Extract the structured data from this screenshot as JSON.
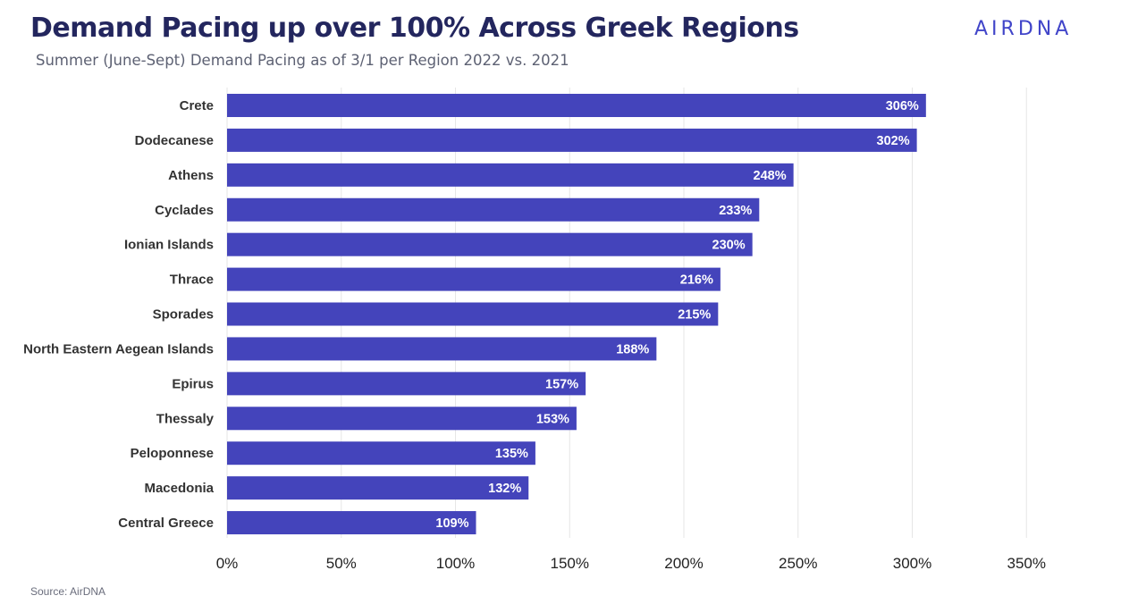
{
  "header": {
    "title": "Demand Pacing up over 100% Across Greek Regions",
    "subtitle": "Summer (June-Sept) Demand Pacing as of 3/1 per Region 2022 vs. 2021",
    "logo_text": "AIRDNA"
  },
  "footer": {
    "source": "Source: AirDNA"
  },
  "chart_data": {
    "type": "bar",
    "orientation": "horizontal",
    "title": "",
    "xlabel": "",
    "ylabel": "",
    "categories": [
      "Crete",
      "Dodecanese",
      "Athens",
      "Cyclades",
      "Ionian Islands",
      "Thrace",
      "Sporades",
      "North Eastern Aegean Islands",
      "Epirus",
      "Thessaly",
      "Peloponnese",
      "Macedonia",
      "Central Greece"
    ],
    "values": [
      306,
      302,
      248,
      233,
      230,
      216,
      215,
      188,
      157,
      153,
      135,
      132,
      109
    ],
    "data_labels": [
      "306%",
      "302%",
      "248%",
      "233%",
      "230%",
      "216%",
      "215%",
      "188%",
      "157%",
      "153%",
      "135%",
      "132%",
      "109%"
    ],
    "xlim": [
      0,
      350
    ],
    "xticks": [
      0,
      50,
      100,
      150,
      200,
      250,
      300,
      350
    ],
    "xtick_labels": [
      "0%",
      "50%",
      "100%",
      "150%",
      "200%",
      "250%",
      "300%",
      "350%"
    ],
    "grid": "vertical",
    "legend": "none",
    "colors": {
      "bar": "#4444bb",
      "grid": "#e6e6e6",
      "title": "#23265e",
      "logo": "#4145c9"
    }
  }
}
